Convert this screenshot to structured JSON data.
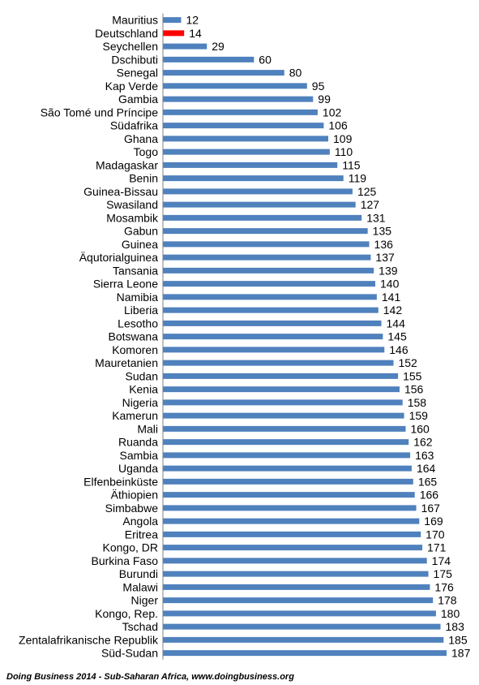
{
  "chart_data": {
    "type": "bar",
    "orientation": "horizontal",
    "title": "",
    "xlabel": "",
    "ylabel": "",
    "xlim": [
      0,
      190
    ],
    "grid": false,
    "legend": "none",
    "bar_color": "#4f81bd",
    "highlight_color": "#ff0000",
    "highlight_category": "Deutschland",
    "categories": [
      "Mauritius",
      "Deutschland",
      "Seychellen",
      "Dschibuti",
      "Senegal",
      "Kap Verde",
      "Gambia",
      "São Tomé und Príncipe",
      "Südafrika",
      "Ghana",
      "Togo",
      "Madagaskar",
      "Benin",
      "Guinea-Bissau",
      "Swasiland",
      "Mosambik",
      "Gabun",
      "Guinea",
      "Äqutorialguinea",
      "Tansania",
      "Sierra Leone",
      "Namibia",
      "Liberia",
      "Lesotho",
      "Botswana",
      "Komoren",
      "Mauretanien",
      "Sudan",
      "Kenia",
      "Nigeria",
      "Kamerun",
      "Mali",
      "Ruanda",
      "Sambia",
      "Uganda",
      "Elfenbeinküste",
      "Äthiopien",
      "Simbabwe",
      "Angola",
      "Eritrea",
      "Kongo, DR",
      "Burkina Faso",
      "Burundi",
      "Malawi",
      "Niger",
      "Kongo, Rep.",
      "Tschad",
      "Zentalafrikanische Republik",
      "Süd-Sudan"
    ],
    "values": [
      12,
      14,
      29,
      60,
      80,
      95,
      99,
      102,
      106,
      109,
      110,
      115,
      119,
      125,
      127,
      131,
      135,
      136,
      137,
      139,
      140,
      141,
      142,
      144,
      145,
      146,
      152,
      155,
      156,
      158,
      159,
      160,
      162,
      163,
      164,
      165,
      166,
      167,
      169,
      170,
      171,
      174,
      175,
      176,
      178,
      180,
      183,
      185,
      187
    ]
  },
  "source_note": "Doing Business 2014 - Sub-Saharan Africa, www.doingbusiness.org"
}
